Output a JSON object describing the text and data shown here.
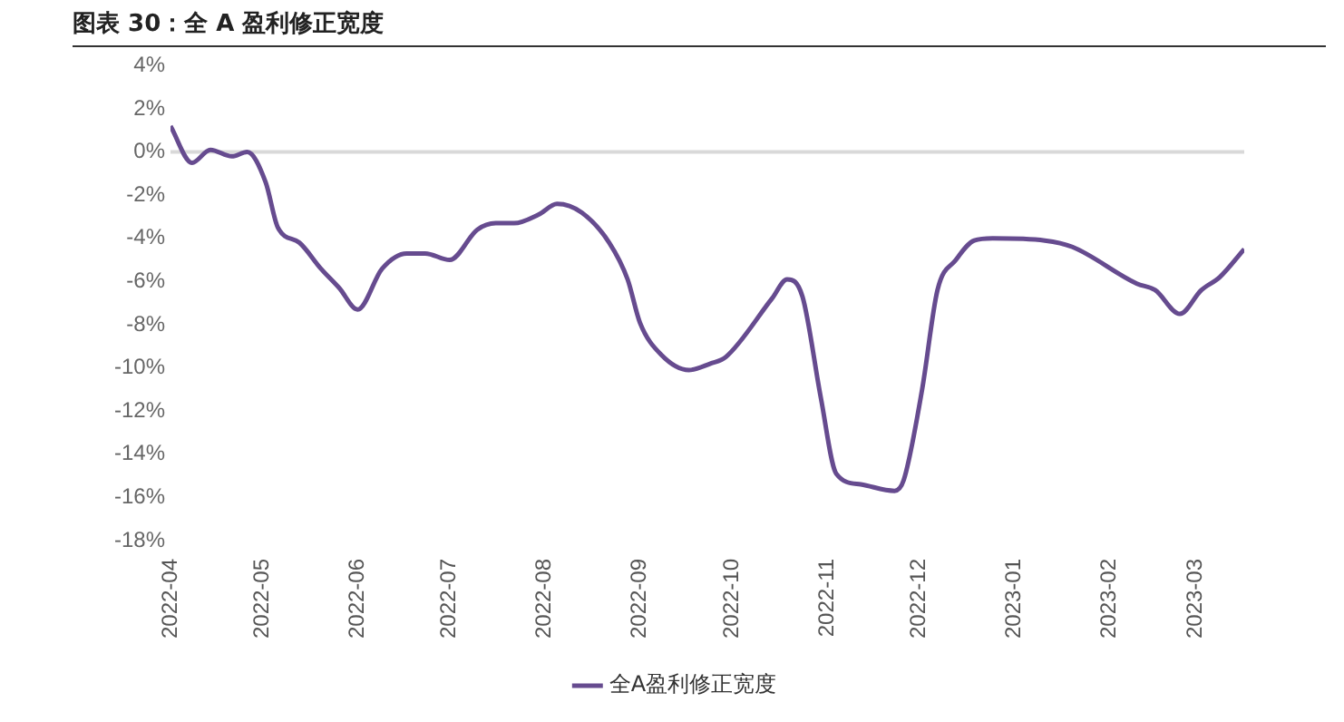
{
  "chart_data": {
    "type": "line",
    "title": "图表 30：全 A 盈利修正宽度",
    "x": [
      "2022-04-01",
      "2022-04-08",
      "2022-04-14",
      "2022-04-21",
      "2022-04-26",
      "2022-05-02",
      "2022-05-06",
      "2022-05-13",
      "2022-05-20",
      "2022-05-26",
      "2022-06-01",
      "2022-06-09",
      "2022-06-17",
      "2022-06-23",
      "2022-07-01",
      "2022-07-10",
      "2022-07-16",
      "2022-07-22",
      "2022-07-30",
      "2022-08-05",
      "2022-08-13",
      "2022-08-22",
      "2022-08-28",
      "2022-09-01",
      "2022-09-08",
      "2022-09-17",
      "2022-09-24",
      "2022-09-29",
      "2022-10-14",
      "2022-10-19",
      "2022-10-24",
      "2022-10-30",
      "2022-11-04",
      "2022-11-12",
      "2022-11-23",
      "2022-11-26",
      "2022-12-02",
      "2022-12-07",
      "2022-12-13",
      "2022-12-19",
      "2022-12-25",
      "2023-01-11",
      "2023-01-20",
      "2023-02-10",
      "2023-02-16",
      "2023-02-24",
      "2023-03-03",
      "2023-03-09",
      "2023-03-17"
    ],
    "series": [
      {
        "name": "全A盈利修正宽度",
        "color": "#664b8f",
        "values": [
          1.2,
          -0.5,
          0.1,
          -0.2,
          0.0,
          -1.4,
          -3.5,
          -4.2,
          -5.4,
          -6.3,
          -7.3,
          -5.4,
          -4.7,
          -4.7,
          -5.0,
          -3.6,
          -3.3,
          -3.3,
          -2.9,
          -2.4,
          -2.8,
          -4.2,
          -5.9,
          -7.9,
          -9.4,
          -10.1,
          -9.8,
          -9.5,
          -6.8,
          -5.9,
          -6.7,
          -11.4,
          -14.9,
          -15.4,
          -15.7,
          -15.2,
          -11.0,
          -6.4,
          -5.0,
          -4.1,
          -4.0,
          -4.1,
          -4.4,
          -6.1,
          -6.4,
          -7.5,
          -6.4,
          -5.8,
          -4.5
        ]
      }
    ],
    "xlim": [
      "2022-04-01",
      "2023-03-17"
    ],
    "xticks": [
      "2022-04",
      "2022-05",
      "2022-06",
      "2022-07",
      "2022-08",
      "2022-09",
      "2022-10",
      "2022-11",
      "2022-12",
      "2023-01",
      "2023-02",
      "2023-03"
    ],
    "ylim": [
      -18,
      4
    ],
    "yticks": [
      {
        "value": -18,
        "label": "-18%"
      },
      {
        "value": -16,
        "label": "-16%"
      },
      {
        "value": -14,
        "label": "-14%"
      },
      {
        "value": -12,
        "label": "-12%"
      },
      {
        "value": -10,
        "label": "-10%"
      },
      {
        "value": -8,
        "label": "-8%"
      },
      {
        "value": -6,
        "label": "-6%"
      },
      {
        "value": -4,
        "label": "-4%"
      },
      {
        "value": -2,
        "label": "-2%"
      },
      {
        "value": 0,
        "label": "0%"
      },
      {
        "value": 2,
        "label": "2%"
      },
      {
        "value": 4,
        "label": "4%"
      }
    ],
    "ref_lines": [
      {
        "axis": "y",
        "value": 0,
        "color": "#d9d9d9"
      }
    ],
    "grid": false,
    "legend": "bottom",
    "marker": "none",
    "line_style": "solid"
  }
}
